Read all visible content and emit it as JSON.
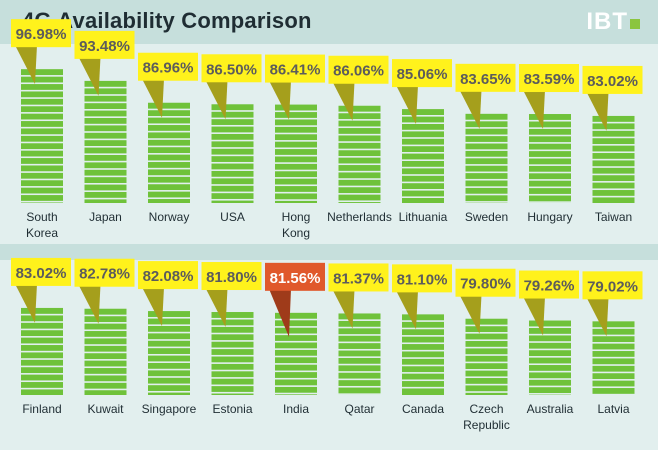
{
  "header": {
    "title": "4G Availability Comparison",
    "logo_text": "IBT"
  },
  "colors": {
    "bar": "#6fc23a",
    "callout": "#fff21c",
    "callout_tail": "#a59f1c",
    "highlight": "#e0582b",
    "highlight_tail": "#9f3b1a",
    "value_text": "#5c5c5c",
    "highlight_text": "#ffffff"
  },
  "chart_data": [
    {
      "type": "bar",
      "title": "4G Availability Comparison",
      "unit": "%",
      "categories": [
        "South Korea",
        "Japan",
        "Norway",
        "USA",
        "Hong Kong",
        "Netherlands",
        "Lithuania",
        "Sweden",
        "Hungary",
        "Taiwan"
      ],
      "category_lines": [
        [
          "South",
          "Korea"
        ],
        [
          "Japan"
        ],
        [
          "Norway"
        ],
        [
          "USA"
        ],
        [
          "Hong",
          "Kong"
        ],
        [
          "Netherlands"
        ],
        [
          "Lithuania"
        ],
        [
          "Sweden"
        ],
        [
          "Hungary"
        ],
        [
          "Taiwan"
        ]
      ],
      "values": [
        96.98,
        93.48,
        86.96,
        86.5,
        86.41,
        86.06,
        85.06,
        83.65,
        83.59,
        83.02
      ],
      "value_labels": [
        "96.98%",
        "93.48%",
        "86.96%",
        "86.50%",
        "86.41%",
        "86.06%",
        "85.06%",
        "83.65%",
        "83.59%",
        "83.02%"
      ],
      "highlight": []
    },
    {
      "type": "bar",
      "unit": "%",
      "categories": [
        "Finland",
        "Kuwait",
        "Singapore",
        "Estonia",
        "India",
        "Qatar",
        "Canada",
        "Czech Republic",
        "Australia",
        "Latvia"
      ],
      "category_lines": [
        [
          "Finland"
        ],
        [
          "Kuwait"
        ],
        [
          "Singapore"
        ],
        [
          "Estonia"
        ],
        [
          "India"
        ],
        [
          "Qatar"
        ],
        [
          "Canada"
        ],
        [
          "Czech",
          "Republic"
        ],
        [
          "Australia"
        ],
        [
          "Latvia"
        ]
      ],
      "values": [
        83.02,
        82.78,
        82.08,
        81.8,
        81.56,
        81.37,
        81.1,
        79.8,
        79.26,
        79.02
      ],
      "value_labels": [
        "83.02%",
        "82.78%",
        "82.08%",
        "81.80%",
        "81.56%",
        "81.37%",
        "81.10%",
        "79.80%",
        "79.26%",
        "79.02%"
      ],
      "highlight": [
        "India"
      ]
    }
  ]
}
